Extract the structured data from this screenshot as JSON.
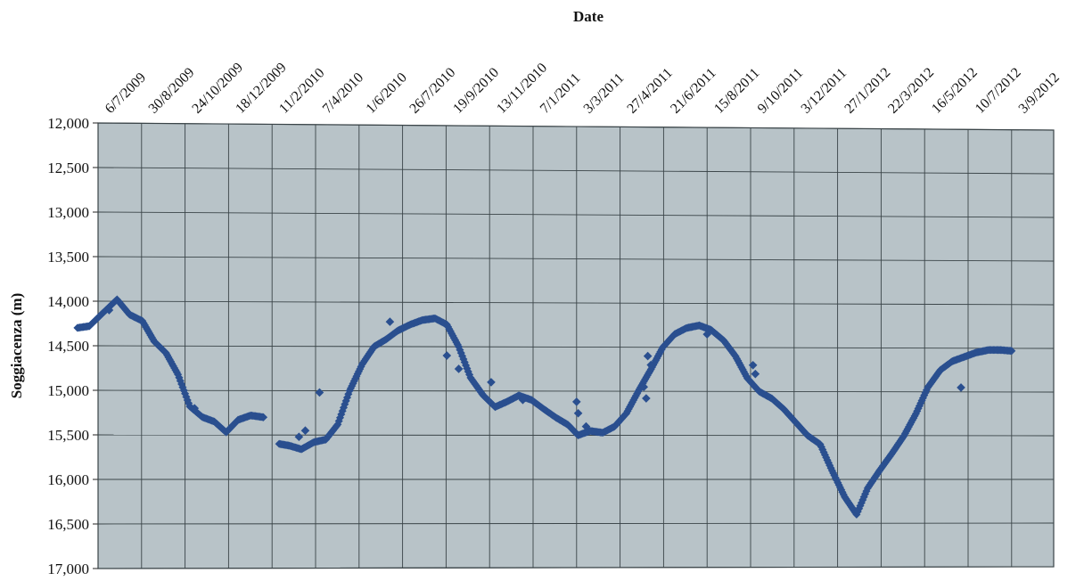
{
  "chart_data": {
    "type": "scatter",
    "title": "",
    "xlabel": "Date",
    "ylabel": "Soggiacenza (m)",
    "x_axis_position": "top",
    "y_axis_inverted": true,
    "ylim": [
      12000,
      17000
    ],
    "xlim": [
      "6/7/2009",
      "3/9/2012"
    ],
    "grid": true,
    "legend": "none",
    "x_tick_labels": [
      "6/7/2009",
      "30/8/2009",
      "24/10/2009",
      "18/12/2009",
      "11/2/2010",
      "7/4/2010",
      "1/6/2010",
      "26/7/2010",
      "19/9/2010",
      "13/11/2010",
      "7/1/2011",
      "3/3/2011",
      "27/4/2011",
      "21/6/2011",
      "15/8/2011",
      "9/10/2011",
      "3/12/2011",
      "27/1/2012",
      "22/3/2012",
      "16/5/2012",
      "10/7/2012",
      "3/9/2012"
    ],
    "y_tick_labels": [
      "12,000",
      "12,500",
      "13,000",
      "13,500",
      "14,000",
      "14,500",
      "15,000",
      "15,500",
      "16,000",
      "16,500",
      "17,000"
    ],
    "y_ticks": [
      12000,
      12500,
      13000,
      13500,
      14000,
      14500,
      15000,
      15500,
      16000,
      16500,
      17000
    ],
    "colors": {
      "plot_background": "#b8c3c8",
      "series": "#2a4f8f",
      "grid": "#3a4448"
    },
    "series": [
      {
        "x": [
          "10/6/2009",
          "25/6/2009",
          "10/7/2009",
          "30/7/2009",
          "15/8/2009",
          "31/8/2009",
          "15/9/2009",
          "30/9/2009",
          "15/10/2009",
          "30/10/2009",
          "15/11/2009",
          "30/11/2009",
          "15/12/2009",
          "30/12/2009",
          "15/1/2010",
          "31/1/2010",
          "31/1/2010"
        ],
        "values": [
          14300,
          14280,
          14150,
          13980,
          14150,
          14220,
          14450,
          14580,
          14820,
          15180,
          15300,
          15350,
          15470,
          15330,
          15280,
          15300,
          15300
        ]
      },
      {
        "x": [
          "20/2/2010",
          "5/3/2010",
          "20/3/2010",
          "5/4/2010",
          "20/4/2010",
          "5/5/2010",
          "20/5/2010",
          "5/6/2010",
          "20/6/2010",
          "5/7/2010",
          "20/7/2010",
          "5/8/2010",
          "20/8/2010",
          "5/9/2010",
          "20/9/2010",
          "5/10/2010",
          "20/10/2010",
          "5/11/2010",
          "20/11/2010",
          "5/12/2010",
          "20/12/2010",
          "5/1/2011",
          "20/1/2011",
          "5/2/2011",
          "20/2/2011",
          "5/3/2011",
          "20/3/2011",
          "5/4/2011",
          "20/4/2011",
          "5/5/2011",
          "20/5/2011",
          "5/6/2011",
          "20/6/2011",
          "5/7/2011",
          "20/7/2011",
          "5/8/2011",
          "20/8/2011",
          "5/9/2011",
          "20/9/2011",
          "5/10/2011",
          "20/10/2011",
          "5/11/2011",
          "20/11/2011",
          "5/12/2011",
          "20/12/2011",
          "5/1/2012",
          "20/1/2012",
          "5/2/2012",
          "20/2/2012",
          "5/3/2012",
          "20/3/2012",
          "5/4/2012",
          "20/4/2012",
          "5/5/2012",
          "20/5/2012",
          "5/6/2012",
          "20/6/2012",
          "5/7/2012",
          "20/7/2012",
          "5/8/2012",
          "20/8/2012",
          "3/9/2012"
        ],
        "values": [
          15600,
          15620,
          15660,
          15580,
          15550,
          15380,
          15000,
          14700,
          14500,
          14420,
          14320,
          14250,
          14200,
          14180,
          14250,
          14500,
          14850,
          15050,
          15180,
          15120,
          15050,
          15100,
          15200,
          15300,
          15380,
          15500,
          15450,
          15470,
          15400,
          15250,
          15000,
          14750,
          14500,
          14350,
          14280,
          14250,
          14300,
          14420,
          14600,
          14850,
          15000,
          15080,
          15200,
          15350,
          15500,
          15600,
          15900,
          16200,
          16400,
          16100,
          15900,
          15700,
          15500,
          15250,
          14950,
          14750,
          14650,
          14600,
          14550,
          14520,
          14520,
          14530
        ]
      },
      {
        "x": [
          "20/7/2009",
          "5/11/2009",
          "17/3/2010",
          "25/3/2010",
          "12/4/2010",
          "10/7/2010",
          "20/9/2010",
          "5/10/2010",
          "15/11/2010",
          "25/12/2010",
          "3/3/2011",
          "5/3/2011",
          "15/3/2011",
          "27/5/2011",
          "30/5/2011",
          "1/6/2011",
          "5/6/2011",
          "15/8/2011",
          "12/10/2011",
          "15/10/2011",
          "1/7/2012"
        ],
        "values": [
          14100,
          15200,
          15520,
          15450,
          15020,
          14220,
          14600,
          14750,
          14900,
          15100,
          15120,
          15250,
          15400,
          14950,
          15080,
          14600,
          14700,
          14350,
          14700,
          14800,
          14950
        ]
      }
    ]
  }
}
